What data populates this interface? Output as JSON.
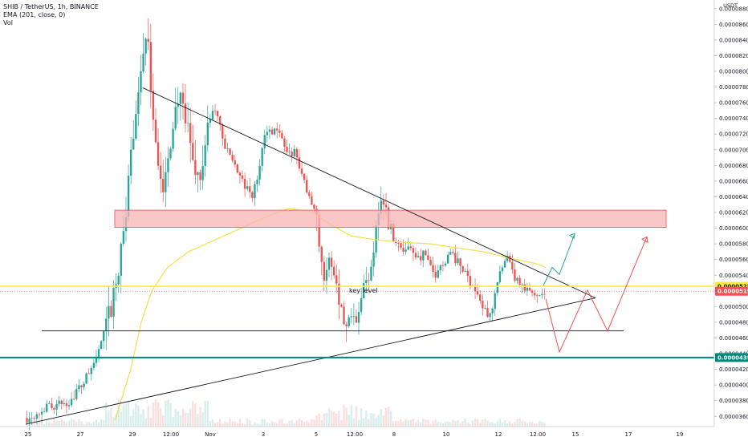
{
  "legend": {
    "symbol": "SHIB / TetherUS, 1h, BINANCE",
    "ema": "EMA (201, close, 0)",
    "vol": "Vol"
  },
  "colors": {
    "up": "#26a69a",
    "down": "#ef5350",
    "ema": "#f5e04a",
    "key_level": "#ffeb3b",
    "support": "#00897b",
    "zone_fill": "#f8b4b4",
    "zone_border": "#ef5350",
    "trendline": "#131722",
    "bull_arrow": "#26a69a",
    "bear_arrow": "#ef5350"
  },
  "chart_data": {
    "type": "candlestick",
    "y_unit": "USDT",
    "x_ticks": [
      "25",
      "27",
      "29",
      "12:00",
      "Nov",
      "3",
      "5",
      "12:00",
      "8",
      "10",
      "12",
      "12:00",
      "15",
      "17",
      "19"
    ],
    "y_ticks": [
      "0.00008800",
      "0.00008600",
      "0.00008400",
      "0.00008200",
      "0.00008000",
      "0.00007800",
      "0.00007600",
      "0.00007400",
      "0.00007200",
      "0.00007000",
      "0.00006800",
      "0.00006600",
      "0.00006400",
      "0.00006200",
      "0.00006000",
      "0.00005800",
      "0.00005600",
      "0.00005400",
      "0.00005200",
      "0.00005000",
      "0.00004800",
      "0.00004600",
      "0.00004400",
      "0.00004200",
      "0.00004000",
      "0.00003800",
      "0.00003600"
    ],
    "ylim": [
      3.47e-05,
      8.91e-05
    ],
    "price_trace": [
      [
        0,
        3.58e-05
      ],
      [
        4,
        3.72e-05
      ],
      [
        8,
        3.78e-05
      ],
      [
        11,
        4.05e-05
      ],
      [
        13,
        4.3e-05
      ],
      [
        15,
        4.7e-05
      ],
      [
        17,
        5.2e-05
      ],
      [
        18,
        5.8e-05
      ],
      [
        19,
        6.2e-05
      ],
      [
        20,
        7e-05
      ],
      [
        21,
        7.6e-05
      ],
      [
        22,
        8.2e-05
      ],
      [
        23,
        8.4e-05
      ],
      [
        24,
        7.6e-05
      ],
      [
        25,
        6.9e-05
      ],
      [
        26,
        6.4e-05
      ],
      [
        27,
        6.8e-05
      ],
      [
        28,
        7.4e-05
      ],
      [
        29,
        7.7e-05
      ],
      [
        30,
        7.4e-05
      ],
      [
        31,
        7.2e-05
      ],
      [
        32,
        6.8e-05
      ],
      [
        33,
        6.6e-05
      ],
      [
        34,
        7e-05
      ],
      [
        35,
        7.4e-05
      ],
      [
        36,
        7.5e-05
      ],
      [
        37,
        7.3e-05
      ],
      [
        38,
        7e-05
      ],
      [
        39,
        6.9e-05
      ],
      [
        40,
        6.8e-05
      ],
      [
        41,
        6.6e-05
      ],
      [
        42,
        6.5e-05
      ],
      [
        43,
        6.4e-05
      ],
      [
        44,
        6.6e-05
      ],
      [
        45,
        7e-05
      ],
      [
        46,
        7.3e-05
      ],
      [
        47,
        7.2e-05
      ],
      [
        48,
        7.3e-05
      ],
      [
        49,
        7.1e-05
      ],
      [
        50,
        6.9e-05
      ],
      [
        51,
        7e-05
      ],
      [
        52,
        6.8e-05
      ],
      [
        53,
        6.6e-05
      ],
      [
        54,
        6.4e-05
      ],
      [
        55,
        6.3e-05
      ],
      [
        56,
        5.8e-05
      ],
      [
        57,
        5.3e-05
      ],
      [
        58,
        5.6e-05
      ],
      [
        59,
        5.4e-05
      ],
      [
        60,
        5e-05
      ],
      [
        61,
        4.7e-05
      ],
      [
        62,
        5e-05
      ],
      [
        63,
        4.9e-05
      ],
      [
        64,
        5.2e-05
      ],
      [
        65,
        5.3e-05
      ],
      [
        66,
        5.6e-05
      ],
      [
        67,
        6.2e-05
      ],
      [
        68,
        6.4e-05
      ],
      [
        69,
        6.1e-05
      ],
      [
        70,
        5.9e-05
      ],
      [
        71,
        5.8e-05
      ],
      [
        72,
        5.7e-05
      ],
      [
        73,
        5.8e-05
      ],
      [
        74,
        5.7e-05
      ],
      [
        75,
        5.6e-05
      ],
      [
        76,
        5.7e-05
      ],
      [
        77,
        5.5e-05
      ],
      [
        78,
        5.4e-05
      ],
      [
        79,
        5.5e-05
      ],
      [
        80,
        5.6e-05
      ],
      [
        81,
        5.7e-05
      ],
      [
        82,
        5.6e-05
      ],
      [
        83,
        5.5e-05
      ],
      [
        84,
        5.4e-05
      ],
      [
        85,
        5.3e-05
      ],
      [
        86,
        5.2e-05
      ],
      [
        87,
        5e-05
      ],
      [
        88,
        4.9e-05
      ],
      [
        89,
        5e-05
      ],
      [
        90,
        5.3e-05
      ],
      [
        91,
        5.5e-05
      ],
      [
        92,
        5.6e-05
      ],
      [
        93,
        5.4e-05
      ],
      [
        94,
        5.3e-05
      ],
      [
        95,
        5.2e-05
      ],
      [
        96,
        5.2e-05
      ],
      [
        97,
        5.15e-05
      ],
      [
        98,
        5.18e-05
      ],
      [
        99,
        5.196e-05
      ]
    ],
    "ema_trace": [
      [
        17,
        3.55e-05
      ],
      [
        20,
        4.2e-05
      ],
      [
        22,
        4.8e-05
      ],
      [
        24,
        5.2e-05
      ],
      [
        27,
        5.5e-05
      ],
      [
        31,
        5.7e-05
      ],
      [
        36,
        5.85e-05
      ],
      [
        41,
        6e-05
      ],
      [
        46,
        6.15e-05
      ],
      [
        50,
        6.25e-05
      ],
      [
        54,
        6.22e-05
      ],
      [
        58,
        6.05e-05
      ],
      [
        62,
        5.9e-05
      ],
      [
        67,
        5.85e-05
      ],
      [
        72,
        5.82e-05
      ],
      [
        77,
        5.8e-05
      ],
      [
        82,
        5.75e-05
      ],
      [
        87,
        5.7e-05
      ],
      [
        92,
        5.62e-05
      ],
      [
        97,
        5.55e-05
      ],
      [
        99,
        5.5e-05
      ]
    ],
    "annotations": {
      "key_level_label": "key level",
      "key_level_value": "0.00005259",
      "last_price": "0.00005196",
      "support_value": "0.00004351"
    }
  }
}
